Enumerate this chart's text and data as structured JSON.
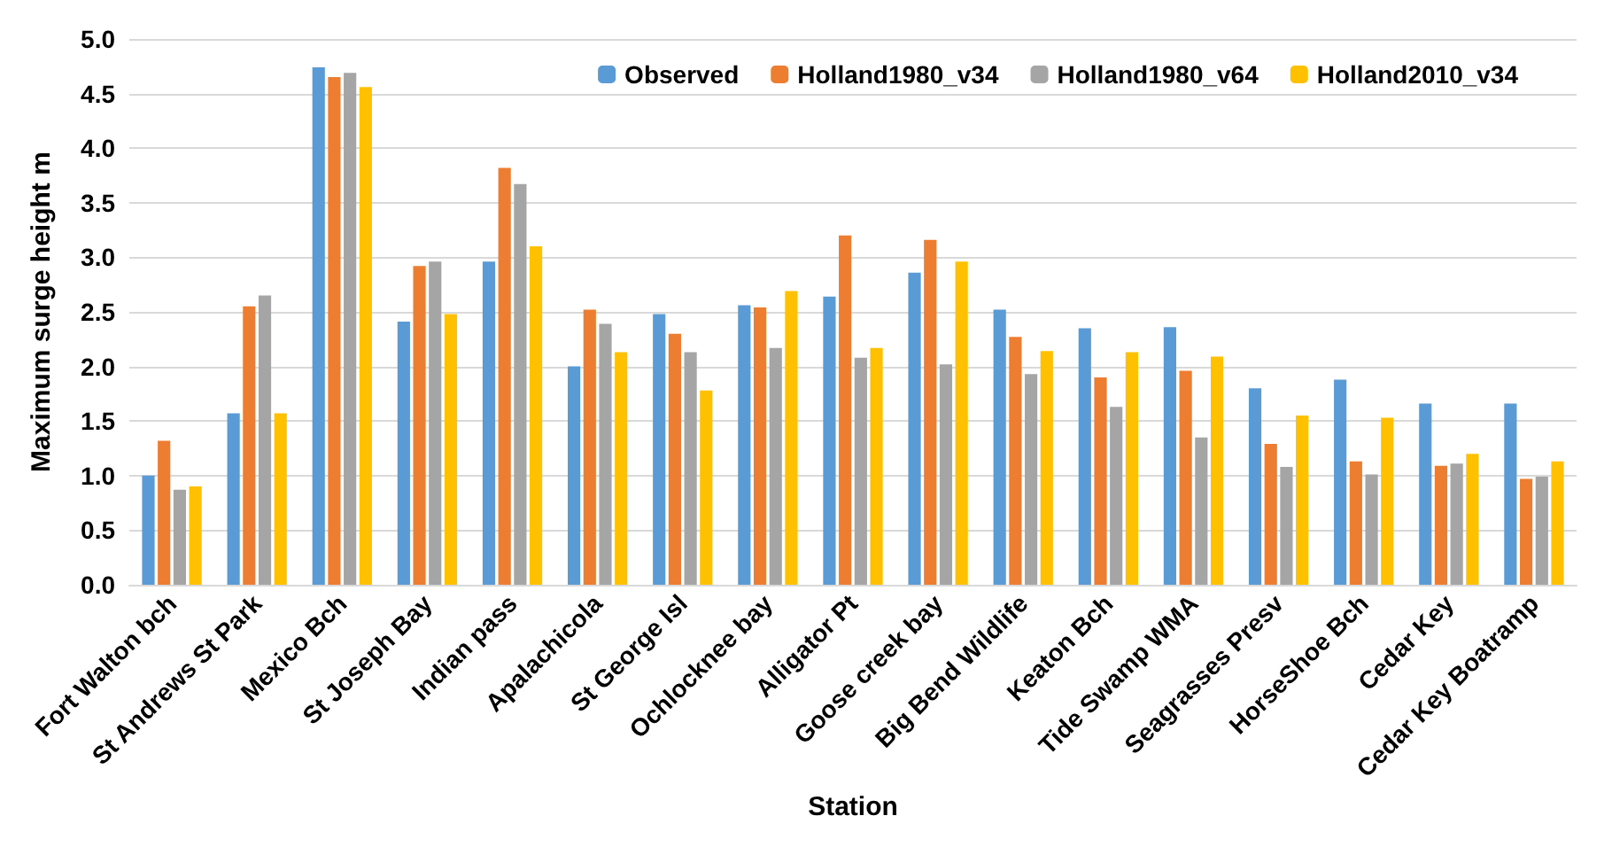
{
  "chart_data": {
    "type": "bar",
    "xlabel": "Station",
    "ylabel": "Maximum surge height m",
    "categories": [
      "Fort Walton bch",
      "St Andrews St Park",
      "Mexico Bch",
      "St Joseph Bay",
      "Indian pass",
      "Apalachicola",
      "St George Isl",
      "Ochlocknee bay",
      "Alligator Pt",
      "Goose creek bay",
      "Big Bend Wildlife",
      "Keaton Bch",
      "Tide Swamp WMA",
      "Seagrasses Presv",
      "HorseShoe Bch",
      "Cedar Key",
      "Cedar Key Boatramp"
    ],
    "series": [
      {
        "name": "Observed",
        "color": "#5b9bd5",
        "values": [
          1.0,
          1.57,
          4.74,
          2.41,
          2.96,
          2.0,
          2.48,
          2.56,
          2.64,
          2.86,
          2.52,
          2.35,
          2.36,
          1.8,
          1.88,
          1.66,
          1.66
        ]
      },
      {
        "name": "Holland1980_v34",
        "color": "#ed7d31",
        "values": [
          1.32,
          2.55,
          4.65,
          2.92,
          3.82,
          2.52,
          2.3,
          2.54,
          3.2,
          3.16,
          2.27,
          1.9,
          1.96,
          1.29,
          1.13,
          1.09,
          0.97
        ]
      },
      {
        "name": "Holland1980_v64",
        "color": "#a5a5a5",
        "values": [
          0.87,
          2.65,
          4.69,
          2.96,
          3.67,
          2.39,
          2.13,
          2.17,
          2.08,
          2.02,
          1.93,
          1.63,
          1.35,
          1.08,
          1.01,
          1.11,
          0.99
        ]
      },
      {
        "name": "Holland2010_v34",
        "color": "#ffc000",
        "values": [
          0.9,
          1.57,
          4.56,
          2.48,
          3.1,
          2.13,
          1.78,
          2.69,
          2.17,
          2.96,
          2.14,
          2.13,
          2.09,
          1.55,
          1.53,
          1.2,
          1.13
        ]
      }
    ],
    "ylim": [
      0,
      5
    ],
    "yticks": [
      {
        "value": 0,
        "label": "0.0"
      },
      {
        "value": 0.5,
        "label": "0.5"
      },
      {
        "value": 1,
        "label": "1.0"
      },
      {
        "value": 1.5,
        "label": "1.5"
      },
      {
        "value": 2,
        "label": "2.0"
      },
      {
        "value": 2.5,
        "label": "2.5"
      },
      {
        "value": 3,
        "label": "3.0"
      },
      {
        "value": 3.5,
        "label": "3.5"
      },
      {
        "value": 4,
        "label": "4.0"
      },
      {
        "value": 4.5,
        "label": "4.5"
      },
      {
        "value": 5,
        "label": "5.0"
      }
    ],
    "grid": "y",
    "legend": "top right"
  }
}
